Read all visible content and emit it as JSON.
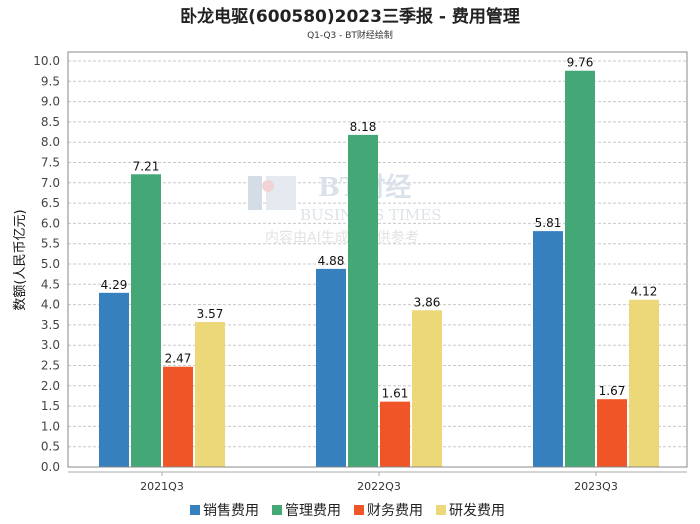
{
  "chart_data": {
    "type": "bar",
    "title": "卧龙电驱(600580)2023三季报 - 费用管理",
    "subtitle": "Q1-Q3 - BT财经绘制",
    "ylabel": "数额(人民币亿元)",
    "xlabel": "",
    "ylim": [
      0,
      10.0
    ],
    "ytick_step": 0.5,
    "categories": [
      "2021Q3",
      "2022Q3",
      "2023Q3"
    ],
    "series": [
      {
        "name": "销售费用",
        "color": "#3680be",
        "values": [
          4.29,
          4.88,
          5.81
        ]
      },
      {
        "name": "管理费用",
        "color": "#44a876",
        "values": [
          7.21,
          8.18,
          9.76
        ]
      },
      {
        "name": "财务费用",
        "color": "#f05528",
        "values": [
          2.47,
          1.61,
          1.67
        ]
      },
      {
        "name": "研发费用",
        "color": "#ecd779",
        "values": [
          3.57,
          3.86,
          4.12
        ]
      }
    ],
    "grid": true,
    "legend_position": "bottom"
  },
  "watermark": {
    "brand": "BT财经",
    "english": "BUSINESS TIMES",
    "note": "内容由AI生成，仅供参考"
  }
}
